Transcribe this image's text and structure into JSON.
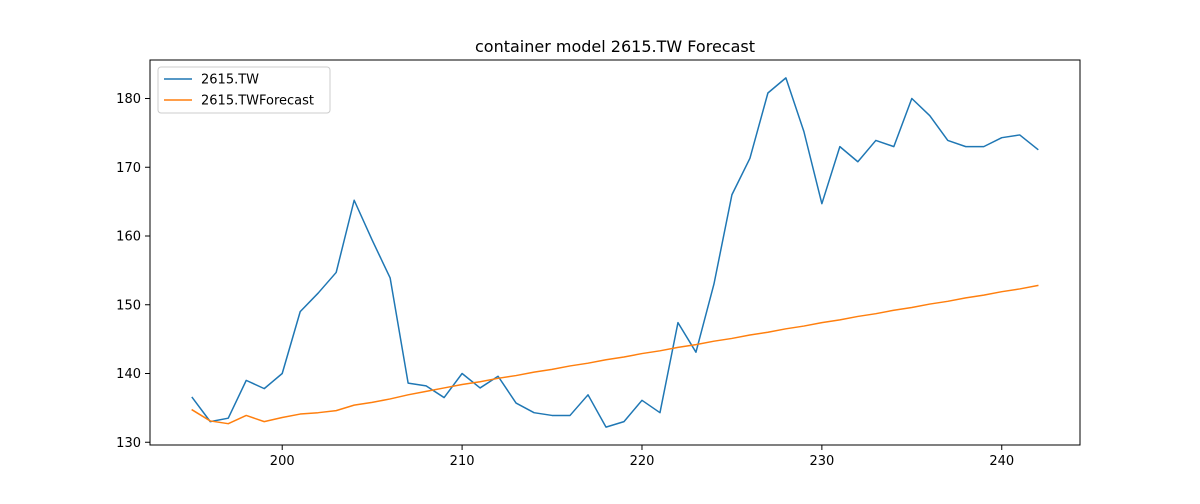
{
  "chart_data": {
    "type": "line",
    "title": "container model 2615.TW Forecast",
    "xlabel": "",
    "ylabel": "",
    "xlim": [
      192.65,
      244.35
    ],
    "ylim": [
      129.6,
      185.6
    ],
    "x_ticks": [
      200,
      210,
      220,
      230,
      240
    ],
    "y_ticks": [
      130,
      140,
      150,
      160,
      170,
      180
    ],
    "grid": false,
    "legend_position": "upper-left",
    "x": [
      195,
      196,
      197,
      198,
      199,
      200,
      201,
      202,
      203,
      204,
      205,
      206,
      207,
      208,
      209,
      210,
      211,
      212,
      213,
      214,
      215,
      216,
      217,
      218,
      219,
      220,
      221,
      222,
      223,
      224,
      225,
      226,
      227,
      228,
      229,
      230,
      231,
      232,
      233,
      234,
      235,
      236,
      237,
      238,
      239,
      240,
      241,
      242
    ],
    "series": [
      {
        "name": "2615.TW",
        "color": "#1f77b4",
        "values": [
          136.5,
          133.0,
          133.5,
          139.0,
          137.8,
          140.0,
          149.0,
          151.7,
          154.7,
          165.2,
          159.4,
          153.9,
          138.6,
          138.2,
          136.5,
          140.0,
          137.9,
          139.6,
          135.7,
          134.3,
          133.9,
          133.9,
          136.9,
          132.2,
          133.0,
          136.1,
          134.3,
          147.4,
          143.1,
          153.0,
          166.0,
          171.3,
          180.8,
          183.0,
          175.2,
          164.7,
          173.0,
          170.8,
          173.9,
          173.0,
          180.0,
          177.5,
          173.9,
          173.0,
          173.0,
          174.3,
          174.7,
          172.6
        ]
      },
      {
        "name": "2615.TWForecast",
        "color": "#ff7f0e",
        "values": [
          134.7,
          133.1,
          132.7,
          133.9,
          133.0,
          133.6,
          134.1,
          134.3,
          134.6,
          135.4,
          135.8,
          136.3,
          136.9,
          137.4,
          137.9,
          138.4,
          138.8,
          139.3,
          139.7,
          140.2,
          140.6,
          141.1,
          141.5,
          142.0,
          142.4,
          142.9,
          143.3,
          143.8,
          144.2,
          144.7,
          145.1,
          145.6,
          146.0,
          146.5,
          146.9,
          147.4,
          147.8,
          148.3,
          148.7,
          149.2,
          149.6,
          150.1,
          150.5,
          151.0,
          151.4,
          151.9,
          152.3,
          152.8
        ]
      }
    ]
  }
}
